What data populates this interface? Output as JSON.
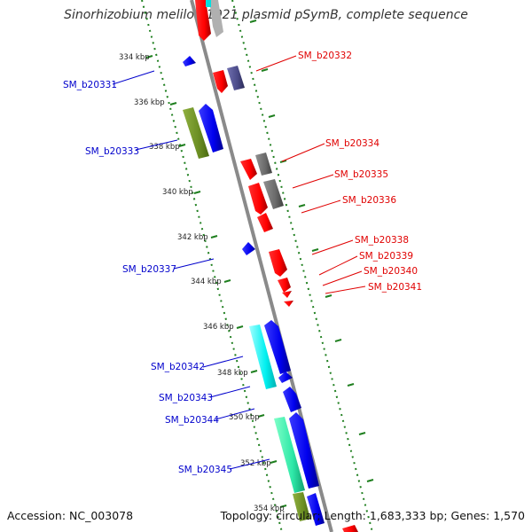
{
  "title": "Sinorhizobium meliloti 1021 plasmid pSymB, complete sequence",
  "accession": "Accession: NC_003078",
  "summary": "Topology: circular; Length: 1,683,333 bp; Genes: 1,570",
  "colors": {
    "backbone": "#8a8a8a",
    "ticks_inner": "#1f7f1f",
    "ticks_outer": "#1f7f1f",
    "forward_label": "#e00000",
    "reverse_label": "#0000cc",
    "red": "#ff0000",
    "blue": "#0000ee",
    "gray": "#666666",
    "slate": "#4a4a88",
    "olive": "#6b8e23",
    "cyan": "#00f0f0",
    "teal": "#2ee8a8"
  },
  "kbp_ticks": [
    "334 kbp",
    "336 kbp",
    "338 kbp",
    "340 kbp",
    "342 kbp",
    "344 kbp",
    "346 kbp",
    "348 kbp",
    "350 kbp",
    "352 kbp",
    "354 kbp"
  ],
  "forward_genes": [
    "SM_b20332",
    "SM_b20334",
    "SM_b20335",
    "SM_b20336",
    "SM_b20338",
    "SM_b20339",
    "SM_b20340",
    "SM_b20341"
  ],
  "reverse_genes": [
    "SM_b20331",
    "SM_b20333",
    "SM_b20337",
    "SM_b20342",
    "SM_b20343",
    "SM_b20344",
    "SM_b20345"
  ]
}
